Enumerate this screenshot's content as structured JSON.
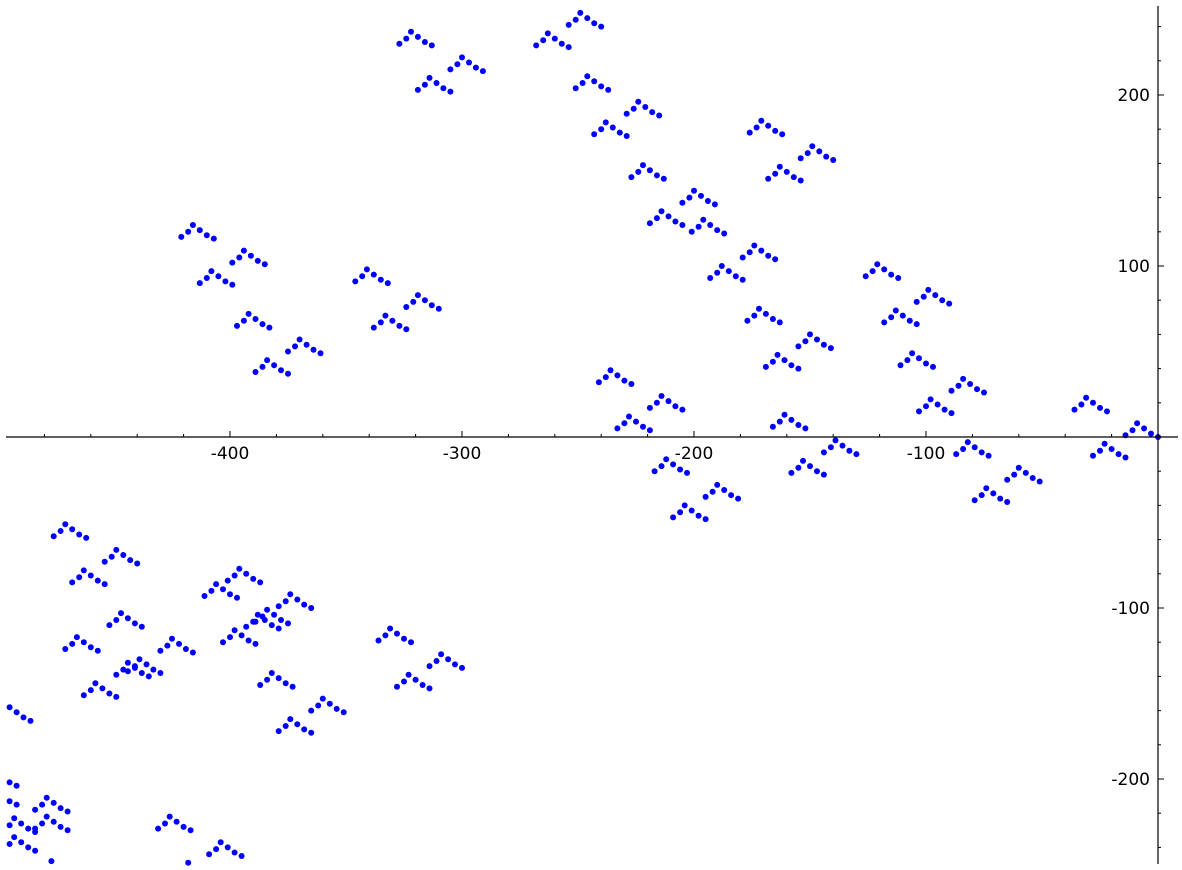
{
  "chart_data": {
    "type": "scatter",
    "title": "",
    "xlabel": "",
    "ylabel": "",
    "xlim": [
      -492,
      8
    ],
    "ylim": [
      -245,
      245
    ],
    "xticks": [
      -400,
      -300,
      -200,
      -100
    ],
    "yticks": [
      -200,
      -100,
      100,
      200
    ],
    "xtick_labels": [
      "-400",
      "-300",
      "-200",
      "-100"
    ],
    "ytick_labels": [
      "-200",
      "-100",
      "100",
      "200"
    ],
    "grid": false,
    "legend": "none",
    "marker_color": "#0000ff",
    "series": [
      {
        "description_of_generation": "",
        "points": [
          [
            0,
            0
          ],
          [
            -2,
            1
          ],
          [
            -3,
            4
          ],
          [
            -6,
            7
          ],
          [
            -7,
            3
          ],
          [
            -8,
            0
          ]
        ]
      }
    ]
  }
}
